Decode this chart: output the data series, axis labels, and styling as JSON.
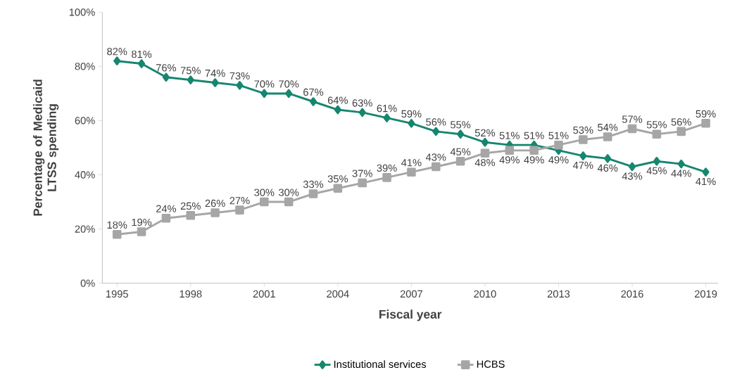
{
  "chart_data": {
    "type": "line",
    "xlabel": "Fiscal year",
    "ylabel": "Percentage of Medicaid LTSS spending",
    "x": [
      1995,
      1996,
      1997,
      1998,
      1999,
      2000,
      2001,
      2002,
      2003,
      2004,
      2005,
      2006,
      2007,
      2008,
      2009,
      2010,
      2011,
      2012,
      2013,
      2014,
      2015,
      2016,
      2017,
      2018,
      2019
    ],
    "series": [
      {
        "name": "Institutional services",
        "color": "#16866f",
        "marker": "diamond",
        "values": [
          82,
          81,
          76,
          75,
          74,
          73,
          70,
          70,
          67,
          64,
          63,
          61,
          59,
          56,
          55,
          52,
          51,
          51,
          49,
          47,
          46,
          43,
          45,
          44,
          41
        ],
        "value_labels": [
          "82%",
          "81%",
          "76%",
          "75%",
          "74%",
          "73%",
          "70%",
          "70%",
          "67%",
          "64%",
          "63%",
          "61%",
          "59%",
          "56%",
          "55%",
          "52%",
          "51%",
          "51%",
          "49%",
          "47%",
          "46%",
          "43%",
          "45%",
          "44%",
          "41%"
        ]
      },
      {
        "name": "HCBS",
        "color": "#a6a6a6",
        "marker": "square",
        "values": [
          18,
          19,
          24,
          25,
          26,
          27,
          30,
          30,
          33,
          35,
          37,
          39,
          41,
          43,
          45,
          48,
          49,
          49,
          51,
          53,
          54,
          57,
          55,
          56,
          59
        ],
        "value_labels": [
          "18%",
          "19%",
          "24%",
          "25%",
          "26%",
          "27%",
          "30%",
          "30%",
          "33%",
          "35%",
          "37%",
          "39%",
          "41%",
          "43%",
          "45%",
          "48%",
          "49%",
          "49%",
          "51%",
          "53%",
          "54%",
          "57%",
          "55%",
          "56%",
          "59%"
        ]
      }
    ],
    "xlim": [
      1994.4,
      2019.5
    ],
    "xticks": [
      1995,
      1998,
      2001,
      2004,
      2007,
      2010,
      2013,
      2016,
      2019
    ],
    "ylim": [
      0,
      100
    ],
    "yticks": [
      {
        "value": 0,
        "label": "0%"
      },
      {
        "value": 20,
        "label": "20%"
      },
      {
        "value": 40,
        "label": "40%"
      },
      {
        "value": 60,
        "label": "60%"
      },
      {
        "value": 80,
        "label": "80%"
      },
      {
        "value": 100,
        "label": "100%"
      }
    ],
    "grid": false,
    "legend": "bottom"
  }
}
